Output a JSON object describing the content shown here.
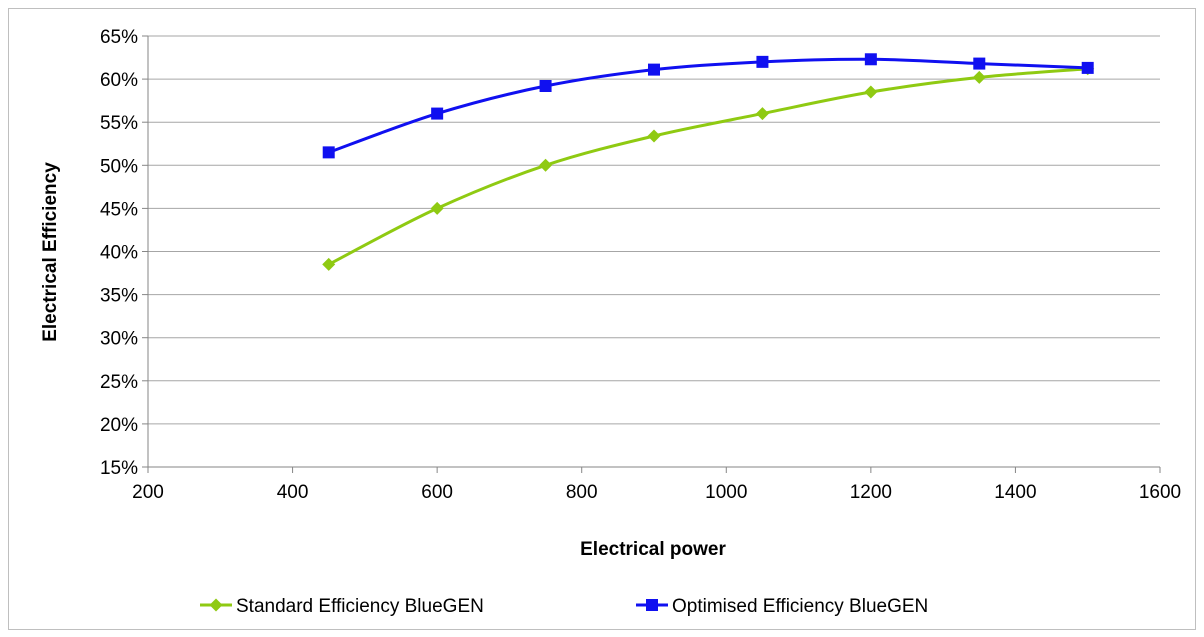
{
  "chart_data": {
    "type": "line",
    "title": "",
    "xlabel": "Electrical power",
    "ylabel": "Electrical Efficiency",
    "xlim": [
      200,
      1600
    ],
    "ylim": [
      15,
      65
    ],
    "x_ticks": [
      200,
      400,
      600,
      800,
      1000,
      1200,
      1400,
      1600
    ],
    "x_tick_labels": [
      "200",
      "400",
      "600",
      "800",
      "1000",
      "1200",
      "1400",
      "1600"
    ],
    "y_ticks": [
      15,
      20,
      25,
      30,
      35,
      40,
      45,
      50,
      55,
      60,
      65
    ],
    "y_tick_labels": [
      "15%",
      "20%",
      "25%",
      "30%",
      "35%",
      "40%",
      "45%",
      "50%",
      "55%",
      "60%",
      "65%"
    ],
    "grid": "horizontal",
    "legend_position": "bottom",
    "x": [
      450,
      600,
      750,
      900,
      1050,
      1200,
      1350,
      1500
    ],
    "series": [
      {
        "name": "Standard Efficiency BlueGEN",
        "values": [
          38.5,
          45,
          50,
          53.4,
          56,
          58.5,
          60.2,
          61.2
        ],
        "color": "#8fca12",
        "marker": "diamond"
      },
      {
        "name": "Optimised Efficiency BlueGEN",
        "values": [
          51.5,
          56,
          59.2,
          61.1,
          62,
          62.3,
          61.8,
          61.3
        ],
        "color": "#1010f0",
        "marker": "square"
      }
    ]
  }
}
